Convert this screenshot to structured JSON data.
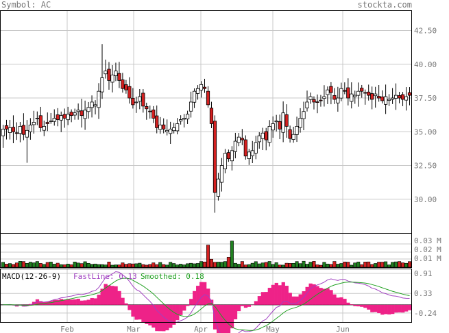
{
  "header": {
    "symbol_label": "Symbol: AC",
    "site": "stockta.com"
  },
  "macd": {
    "label": "MACD(12-26-9)",
    "fastline_label": "FastLine: 0.13",
    "smoothed_label": "Smoothed: 0.18",
    "fast_color": "#a040c0",
    "smooth_color": "#20a020",
    "hist_color": "#ee2288"
  },
  "colors": {
    "up_candle": "#ffffff",
    "down_candle": "#d42020",
    "vol_up": "#208020",
    "vol_down": "#d42020",
    "grid": "#c8c8c8"
  },
  "chart_data": [
    {
      "type": "candlestick",
      "panel": "price",
      "ylim": [
        27.5,
        44.0
      ],
      "y_ticks": [
        "42.50",
        "40.00",
        "37.50",
        "35.00",
        "32.50",
        "30.00"
      ],
      "x_ticks": [
        "Feb",
        "Mar",
        "Apr",
        "May",
        "Jun"
      ],
      "close": [
        35.2,
        35.2,
        35.3,
        35.0,
        34.9,
        35.4,
        34.8,
        35.1,
        35.5,
        35.7,
        36.0,
        35.3,
        35.4,
        35.6,
        35.8,
        36.0,
        35.9,
        36.2,
        36.0,
        36.3,
        36.2,
        36.4,
        36.6,
        36.2,
        36.6,
        36.8,
        37.2,
        37.0,
        38.0,
        39.0,
        39.5,
        38.8,
        39.2,
        39.5,
        38.8,
        38.2,
        38.1,
        37.5,
        37.0,
        37.2,
        37.6,
        36.9,
        36.7,
        36.5,
        36.0,
        35.3,
        35.5,
        35.2,
        35.1,
        35.2,
        35.3,
        35.6,
        35.9,
        36.0,
        36.3,
        37.2,
        38.0,
        38.2,
        38.5,
        38.2,
        37.0,
        35.6,
        30.5,
        31.5,
        32.5,
        33.4,
        33.0,
        33.6,
        34.3,
        34.6,
        34.4,
        33.2,
        33.5,
        33.6,
        34.2,
        34.7,
        34.9,
        34.4,
        35.4,
        35.6,
        35.8,
        35.2,
        36.4,
        35.4,
        34.5,
        34.8,
        35.4,
        36.0,
        36.5,
        37.2,
        37.6,
        37.2,
        37.2,
        37.3,
        37.6,
        38.1,
        37.9,
        37.4,
        37.5,
        38.2,
        38.0,
        37.5,
        37.8,
        37.7,
        38.0,
        38.0,
        37.9,
        37.7,
        37.4,
        37.8,
        37.5,
        37.3,
        37.6,
        37.4,
        37.5,
        37.7,
        37.5,
        37.4,
        37.6,
        37.7
      ],
      "note": "daily candlesticks, Jan–Jun"
    },
    {
      "type": "bar",
      "panel": "volume",
      "y_ticks": [
        "0.03 M",
        "0.02 M",
        "0.01 M"
      ],
      "ylim": [
        0,
        0.034
      ],
      "spike_values": [
        0.022,
        0.028,
        0.026
      ]
    },
    {
      "type": "line",
      "panel": "macd",
      "y_ticks": [
        "0.91",
        "0.33",
        "-0.24"
      ],
      "ylim": [
        -0.5,
        1.05
      ],
      "series": [
        {
          "name": "FastLine",
          "last": 0.13
        },
        {
          "name": "Smoothed",
          "last": 0.18
        }
      ]
    }
  ]
}
